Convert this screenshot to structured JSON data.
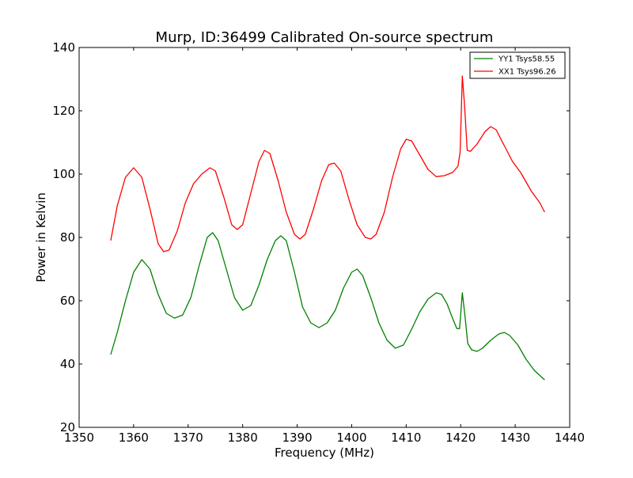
{
  "chart_data": {
    "type": "line",
    "title": "Murp, ID:36499 Calibrated On-source spectrum",
    "xlabel": "Frequency (MHz)",
    "ylabel": "Power in Kelvin",
    "xlim": [
      1350,
      1440
    ],
    "ylim": [
      20,
      140
    ],
    "xticks": [
      1350,
      1360,
      1370,
      1380,
      1390,
      1400,
      1410,
      1420,
      1430,
      1440
    ],
    "yticks": [
      20,
      40,
      60,
      80,
      100,
      120,
      140
    ],
    "grid": false,
    "legend_position": "top-right",
    "series": [
      {
        "name": "YY1 Tsys58.55",
        "color": "#008000",
        "points": [
          [
            1355.8,
            43
          ],
          [
            1357.0,
            50
          ],
          [
            1358.5,
            60
          ],
          [
            1360.0,
            69
          ],
          [
            1361.5,
            73
          ],
          [
            1363.0,
            70
          ],
          [
            1364.5,
            62
          ],
          [
            1366.0,
            56
          ],
          [
            1367.5,
            54.5
          ],
          [
            1369.0,
            55.5
          ],
          [
            1370.5,
            61
          ],
          [
            1372.0,
            71
          ],
          [
            1373.5,
            80
          ],
          [
            1374.5,
            81.5
          ],
          [
            1375.5,
            79
          ],
          [
            1377.0,
            70
          ],
          [
            1378.5,
            61
          ],
          [
            1380.0,
            57
          ],
          [
            1381.5,
            58.5
          ],
          [
            1383.0,
            65
          ],
          [
            1384.5,
            73
          ],
          [
            1386.0,
            79
          ],
          [
            1387.0,
            80.5
          ],
          [
            1388.0,
            79
          ],
          [
            1389.5,
            69
          ],
          [
            1391.0,
            58
          ],
          [
            1392.5,
            53
          ],
          [
            1394.0,
            51.5
          ],
          [
            1395.5,
            53
          ],
          [
            1397.0,
            57
          ],
          [
            1398.5,
            64
          ],
          [
            1400.0,
            69
          ],
          [
            1401.0,
            70
          ],
          [
            1402.0,
            68
          ],
          [
            1403.5,
            61
          ],
          [
            1405.0,
            53
          ],
          [
            1406.5,
            47.5
          ],
          [
            1408.0,
            45
          ],
          [
            1409.5,
            46
          ],
          [
            1411.0,
            51
          ],
          [
            1412.5,
            56.5
          ],
          [
            1414.0,
            60.5
          ],
          [
            1415.5,
            62.5
          ],
          [
            1416.5,
            62
          ],
          [
            1417.5,
            59
          ],
          [
            1418.5,
            54.5
          ],
          [
            1419.3,
            51.2
          ],
          [
            1419.8,
            51.2
          ],
          [
            1420.3,
            62.5
          ],
          [
            1420.8,
            55
          ],
          [
            1421.3,
            46.5
          ],
          [
            1422.0,
            44.5
          ],
          [
            1423.0,
            44
          ],
          [
            1424.0,
            45
          ],
          [
            1425.5,
            47.5
          ],
          [
            1427.0,
            49.5
          ],
          [
            1428.0,
            50
          ],
          [
            1429.0,
            49
          ],
          [
            1430.5,
            46
          ],
          [
            1432.0,
            41.5
          ],
          [
            1433.5,
            38
          ],
          [
            1435.4,
            35
          ]
        ]
      },
      {
        "name": "XX1 Tsys96.26",
        "color": "#ff0000",
        "points": [
          [
            1355.8,
            79
          ],
          [
            1357.0,
            90
          ],
          [
            1358.5,
            99
          ],
          [
            1360.0,
            102
          ],
          [
            1361.5,
            99
          ],
          [
            1363.0,
            89
          ],
          [
            1364.5,
            78
          ],
          [
            1365.5,
            75.5
          ],
          [
            1366.5,
            76
          ],
          [
            1368.0,
            82
          ],
          [
            1369.5,
            91
          ],
          [
            1371.0,
            97
          ],
          [
            1372.5,
            100
          ],
          [
            1374.0,
            102
          ],
          [
            1375.0,
            101
          ],
          [
            1376.5,
            93
          ],
          [
            1378.0,
            84
          ],
          [
            1379.0,
            82.5
          ],
          [
            1380.0,
            84
          ],
          [
            1381.5,
            94
          ],
          [
            1383.0,
            104
          ],
          [
            1384.0,
            107.5
          ],
          [
            1385.0,
            106.5
          ],
          [
            1386.5,
            98
          ],
          [
            1388.0,
            88
          ],
          [
            1389.5,
            81
          ],
          [
            1390.5,
            79.5
          ],
          [
            1391.5,
            81
          ],
          [
            1393.0,
            89
          ],
          [
            1394.5,
            98
          ],
          [
            1395.8,
            103
          ],
          [
            1396.8,
            103.5
          ],
          [
            1398.0,
            101
          ],
          [
            1399.5,
            92
          ],
          [
            1401.0,
            84
          ],
          [
            1402.5,
            80
          ],
          [
            1403.5,
            79.5
          ],
          [
            1404.5,
            81
          ],
          [
            1406.0,
            88
          ],
          [
            1407.5,
            99
          ],
          [
            1409.0,
            108
          ],
          [
            1410.0,
            111
          ],
          [
            1411.0,
            110.5
          ],
          [
            1412.5,
            106
          ],
          [
            1414.0,
            101.5
          ],
          [
            1415.5,
            99.2
          ],
          [
            1417.0,
            99.5
          ],
          [
            1418.5,
            100.5
          ],
          [
            1419.5,
            102.5
          ],
          [
            1419.9,
            107
          ],
          [
            1420.3,
            131
          ],
          [
            1420.7,
            122
          ],
          [
            1421.2,
            107.5
          ],
          [
            1421.8,
            107.2
          ],
          [
            1423.0,
            109.5
          ],
          [
            1424.5,
            113.5
          ],
          [
            1425.5,
            115
          ],
          [
            1426.5,
            114
          ],
          [
            1428.0,
            109
          ],
          [
            1429.5,
            104
          ],
          [
            1431.0,
            100.5
          ],
          [
            1433.0,
            94.5
          ],
          [
            1434.5,
            91
          ],
          [
            1435.4,
            88
          ]
        ]
      }
    ]
  }
}
